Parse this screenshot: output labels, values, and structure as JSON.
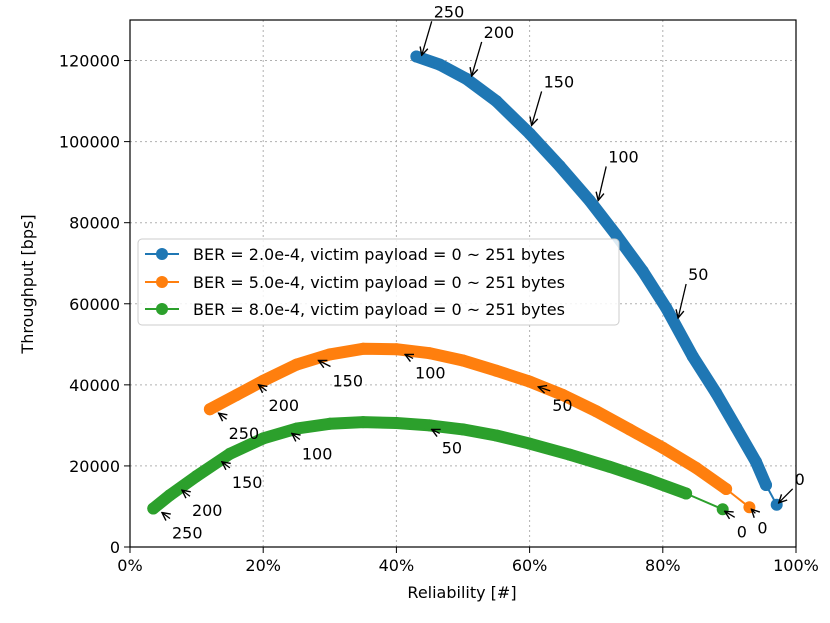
{
  "chart_data": {
    "type": "line",
    "xlabel": "Reliability [#]",
    "ylabel": "Throughput [bps]",
    "xlim": [
      0,
      100
    ],
    "ylim": [
      0,
      130000
    ],
    "x_ticks": [
      "0%",
      "20%",
      "40%",
      "60%",
      "80%",
      "100%"
    ],
    "y_ticks": [
      "0",
      "20000",
      "40000",
      "60000",
      "80000",
      "100000",
      "120000"
    ],
    "grid": true,
    "legend_position": "center-left",
    "series": [
      {
        "name": "BER = 2.0e-4, victim payload = 0 ~ 251 bytes",
        "color": "#1f77b4",
        "points": [
          [
            97.1,
            10400
          ],
          [
            95.5,
            15300
          ],
          [
            94,
            21000
          ],
          [
            91,
            29500
          ],
          [
            88,
            38000
          ],
          [
            84.5,
            47000
          ],
          [
            80.5,
            59000
          ],
          [
            77,
            68000
          ],
          [
            73,
            77000
          ],
          [
            69,
            85500
          ],
          [
            64.5,
            94000
          ],
          [
            60,
            102000
          ],
          [
            55,
            110000
          ],
          [
            50.5,
            115500
          ],
          [
            46.5,
            119000
          ],
          [
            43,
            121000
          ]
        ],
        "annotations": [
          {
            "label": "0",
            "x": 97.1,
            "y": 10400
          },
          {
            "label": "50",
            "x": 82,
            "y": 56000
          },
          {
            "label": "100",
            "x": 70,
            "y": 85000
          },
          {
            "label": "150",
            "x": 60,
            "y": 103500
          },
          {
            "label": "200",
            "x": 51,
            "y": 115700
          },
          {
            "label": "250",
            "x": 43.5,
            "y": 120800
          }
        ]
      },
      {
        "name": "BER = 5.0e-4, victim payload = 0 ~ 251 bytes",
        "color": "#ff7f0e",
        "points": [
          [
            93,
            9800
          ],
          [
            89.5,
            14300
          ],
          [
            85,
            19500
          ],
          [
            80,
            24500
          ],
          [
            75,
            29000
          ],
          [
            70,
            33500
          ],
          [
            65,
            37500
          ],
          [
            60,
            40800
          ],
          [
            55,
            43500
          ],
          [
            50,
            46000
          ],
          [
            45,
            47800
          ],
          [
            40,
            48800
          ],
          [
            35,
            48900
          ],
          [
            30,
            47500
          ],
          [
            25,
            45000
          ],
          [
            20,
            41000
          ],
          [
            16,
            37500
          ],
          [
            12,
            34000
          ]
        ],
        "annotations": [
          {
            "label": "0",
            "x": 93,
            "y": 9800
          },
          {
            "label": "50",
            "x": 61,
            "y": 40000
          },
          {
            "label": "100",
            "x": 41,
            "y": 48000
          },
          {
            "label": "150",
            "x": 28,
            "y": 46500
          },
          {
            "label": "200",
            "x": 19,
            "y": 40500
          },
          {
            "label": "250",
            "x": 13,
            "y": 33500
          }
        ]
      },
      {
        "name": "BER = 8.0e-4, victim payload = 0 ~ 251 bytes",
        "color": "#2ca02c",
        "points": [
          [
            89,
            9300
          ],
          [
            83.5,
            13200
          ],
          [
            78,
            16500
          ],
          [
            72,
            19800
          ],
          [
            66,
            22800
          ],
          [
            60,
            25500
          ],
          [
            55,
            27500
          ],
          [
            50,
            29000
          ],
          [
            45,
            30000
          ],
          [
            40,
            30600
          ],
          [
            35,
            30800
          ],
          [
            30,
            30400
          ],
          [
            25,
            29200
          ],
          [
            20,
            26800
          ],
          [
            15,
            23000
          ],
          [
            10,
            17500
          ],
          [
            6,
            12800
          ],
          [
            3.5,
            9500
          ]
        ],
        "annotations": [
          {
            "label": "0",
            "x": 89,
            "y": 9300
          },
          {
            "label": "50",
            "x": 45,
            "y": 29500
          },
          {
            "label": "100",
            "x": 24,
            "y": 28500
          },
          {
            "label": "150",
            "x": 13.5,
            "y": 21500
          },
          {
            "label": "200",
            "x": 7.5,
            "y": 14500
          },
          {
            "label": "250",
            "x": 4.5,
            "y": 9000
          }
        ]
      }
    ]
  }
}
